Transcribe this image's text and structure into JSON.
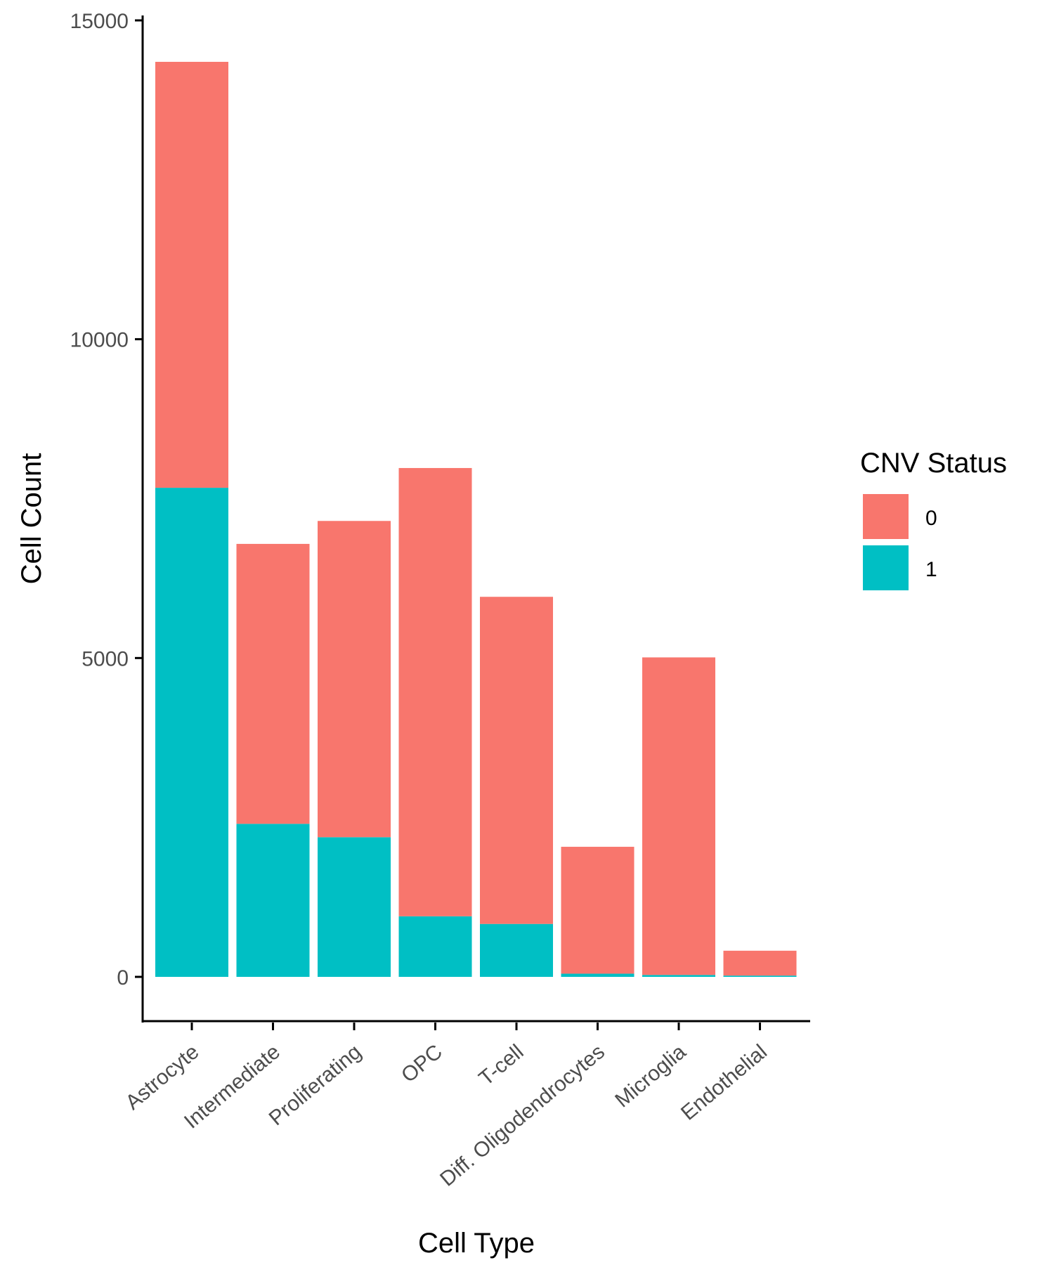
{
  "chart_data": {
    "type": "bar",
    "stacked": true,
    "categories": [
      "Astrocyte",
      "Intermediate",
      "Proliferating",
      "OPC",
      "T-cell",
      "Diff. Oligodendrocytes",
      "Microglia",
      "Endothelial"
    ],
    "series": [
      {
        "name": "1",
        "color": "#00BFC4",
        "values": [
          7670,
          2400,
          2190,
          950,
          830,
          50,
          30,
          20
        ]
      },
      {
        "name": "0",
        "color": "#F8766D",
        "values": [
          6680,
          4390,
          4960,
          7030,
          5130,
          1990,
          4980,
          390
        ]
      }
    ],
    "xlabel": "Cell Type",
    "ylabel": "Cell Count",
    "ylim": [
      0,
      15000
    ],
    "yticks": [
      "0",
      "5000",
      "10000",
      "15000"
    ],
    "legend": {
      "title": "CNV Status",
      "entries": [
        "0",
        "1"
      ],
      "placement": "right"
    },
    "grid": false
  }
}
